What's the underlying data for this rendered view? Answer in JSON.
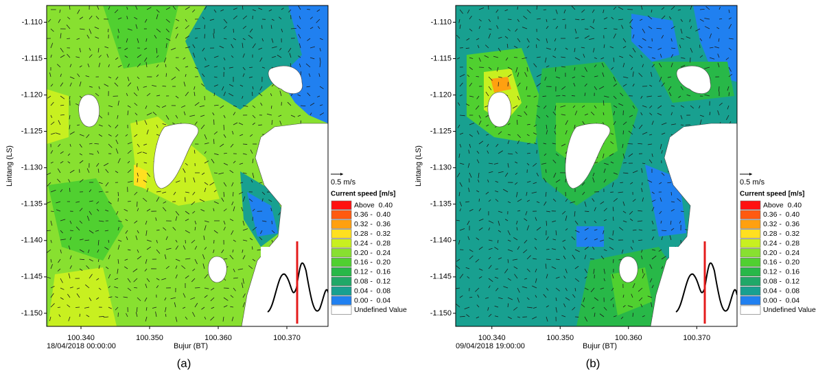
{
  "chart_data": [
    {
      "type": "contour",
      "caption": "(a)",
      "timestamp": "18/04/2018 00:00:00",
      "x_label": "Bujur (BT)",
      "y_label": "Lintang (LS)",
      "xlim": [
        100.335,
        100.376
      ],
      "ylim": [
        -1.1518,
        -1.1077
      ],
      "xticks": [
        {
          "value": 100.34,
          "label": "100.340"
        },
        {
          "value": 100.35,
          "label": "100.350"
        },
        {
          "value": 100.36,
          "label": "100.360"
        },
        {
          "value": 100.37,
          "label": "100.370"
        }
      ],
      "yticks": [
        {
          "value": -1.11,
          "label": "-1.110"
        },
        {
          "value": -1.115,
          "label": "-1.115"
        },
        {
          "value": -1.12,
          "label": "-1.120"
        },
        {
          "value": -1.125,
          "label": "-1.125"
        },
        {
          "value": -1.13,
          "label": "-1.130"
        },
        {
          "value": -1.135,
          "label": "-1.135"
        },
        {
          "value": -1.14,
          "label": "-1.140"
        },
        {
          "value": -1.145,
          "label": "-1.145"
        },
        {
          "value": -1.15,
          "label": "-1.150"
        }
      ],
      "scale_arrow": "0.5 m/s",
      "legend_title": "Current speed [m/s]",
      "legend": [
        {
          "label": "Above  0.40",
          "color": "#ff1010"
        },
        {
          "label": "0.36 -  0.40",
          "color": "#ff5a10"
        },
        {
          "label": "0.32 -  0.36",
          "color": "#ffa010"
        },
        {
          "label": "0.28 -  0.32",
          "color": "#ffe020"
        },
        {
          "label": "0.24 -  0.28",
          "color": "#c8f020"
        },
        {
          "label": "0.20 -  0.24",
          "color": "#88e030"
        },
        {
          "label": "0.16 -  0.20",
          "color": "#50d030"
        },
        {
          "label": "0.12 -  0.16",
          "color": "#28b848"
        },
        {
          "label": "0.08 -  0.12",
          "color": "#20a868"
        },
        {
          "label": "0.04 -  0.08",
          "color": "#18a090"
        },
        {
          "label": "0.00 -  0.04",
          "color": "#2080f0"
        },
        {
          "label": "Undefined Value",
          "color": "#ffffff"
        }
      ]
    },
    {
      "type": "contour",
      "caption": "(b)",
      "timestamp": "09/04/2018 19:00:00",
      "x_label": "Bujur (BT)",
      "y_label": "Lintang (LS)",
      "xlim": [
        100.3347,
        100.3759
      ],
      "ylim": [
        -1.1518,
        -1.1077
      ],
      "xticks": [
        {
          "value": 100.34,
          "label": "100.340"
        },
        {
          "value": 100.35,
          "label": "100.350"
        },
        {
          "value": 100.36,
          "label": "100.360"
        },
        {
          "value": 100.37,
          "label": "100.370"
        }
      ],
      "yticks": [
        {
          "value": -1.11,
          "label": "-1.110"
        },
        {
          "value": -1.115,
          "label": "-1.115"
        },
        {
          "value": -1.12,
          "label": "-1.120"
        },
        {
          "value": -1.125,
          "label": "-1.125"
        },
        {
          "value": -1.13,
          "label": "-1.130"
        },
        {
          "value": -1.135,
          "label": "-1.135"
        },
        {
          "value": -1.14,
          "label": "-1.140"
        },
        {
          "value": -1.145,
          "label": "-1.145"
        },
        {
          "value": -1.15,
          "label": "-1.150"
        }
      ],
      "scale_arrow": "0.5 m/s",
      "legend_title": "Current speed [m/s]",
      "legend": [
        {
          "label": "Above  0.40",
          "color": "#ff1010"
        },
        {
          "label": "0.36 -  0.40",
          "color": "#ff5a10"
        },
        {
          "label": "0.32 -  0.36",
          "color": "#ffa010"
        },
        {
          "label": "0.28 -  0.32",
          "color": "#ffe020"
        },
        {
          "label": "0.24 -  0.28",
          "color": "#c8f020"
        },
        {
          "label": "0.20 -  0.24",
          "color": "#88e030"
        },
        {
          "label": "0.16 -  0.20",
          "color": "#50d030"
        },
        {
          "label": "0.12 -  0.16",
          "color": "#28b848"
        },
        {
          "label": "0.08 -  0.12",
          "color": "#20a868"
        },
        {
          "label": "0.04 -  0.08",
          "color": "#18a090"
        },
        {
          "label": "0.00 -  0.04",
          "color": "#2080f0"
        },
        {
          "label": "Undefined Value",
          "color": "#ffffff"
        }
      ]
    }
  ]
}
